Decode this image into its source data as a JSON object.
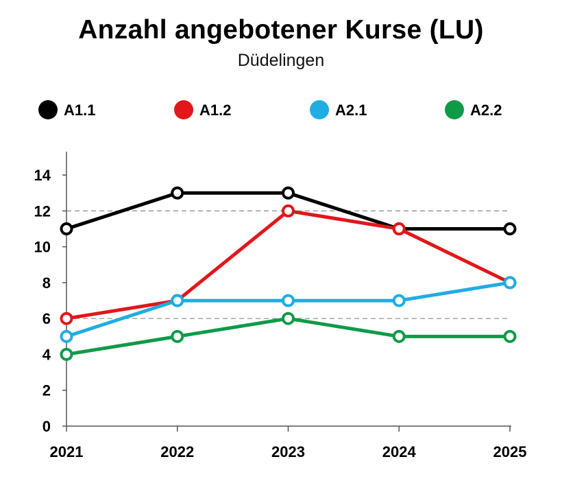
{
  "chart_data": {
    "type": "line",
    "title": "Anzahl angebotener Kurse (LU)",
    "subtitle": "Düdelingen",
    "x": [
      "2021",
      "2022",
      "2023",
      "2024",
      "2025"
    ],
    "yticks": [
      "0",
      "2",
      "4",
      "6",
      "8",
      "10",
      "12",
      "14"
    ],
    "ylim": [
      0,
      15
    ],
    "reference_lines": [
      6,
      12
    ],
    "legend_position": "top",
    "series": [
      {
        "name": "A1.1",
        "color": "#000000",
        "values": [
          11,
          13,
          13,
          11,
          11
        ]
      },
      {
        "name": "A1.2",
        "color": "#e3161b",
        "values": [
          6,
          7,
          12,
          11,
          8
        ]
      },
      {
        "name": "A2.1",
        "color": "#1fade4",
        "values": [
          5,
          7,
          7,
          7,
          8
        ]
      },
      {
        "name": "A2.2",
        "color": "#0f9a48",
        "values": [
          4,
          5,
          6,
          5,
          5
        ]
      }
    ]
  }
}
